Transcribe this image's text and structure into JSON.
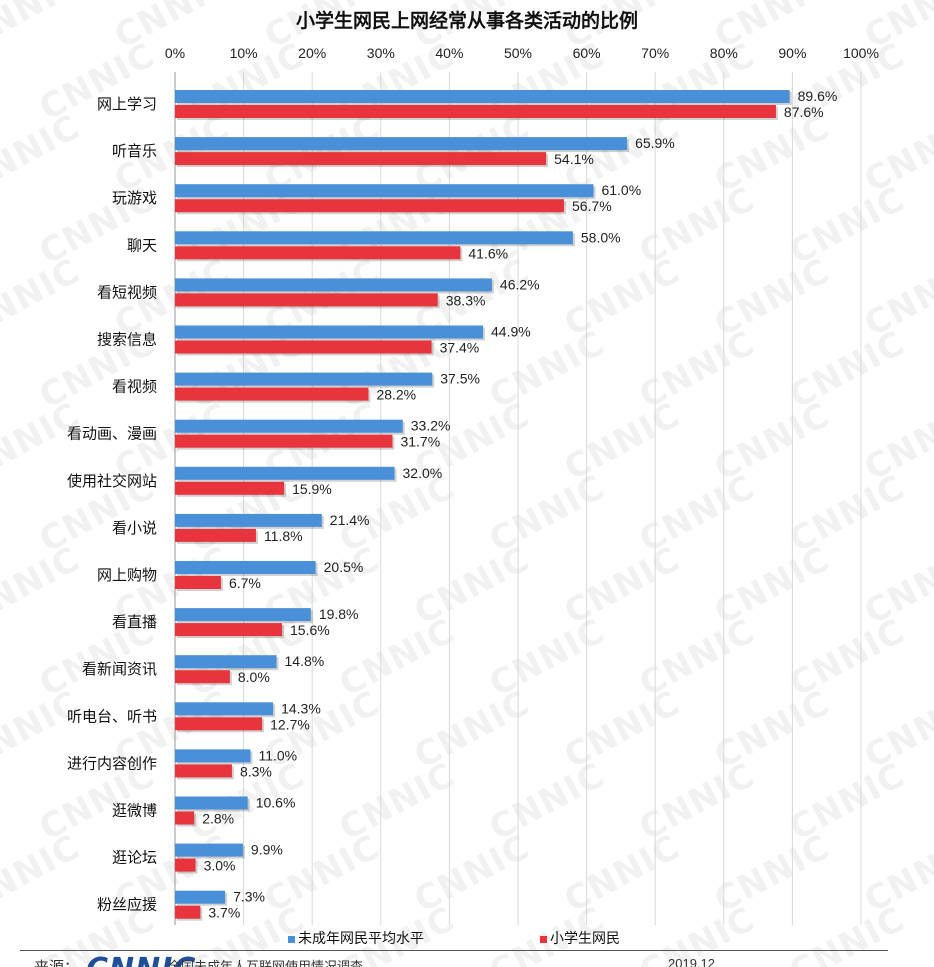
{
  "header": {
    "title": "小学生网民上网经常从事各类活动的比例"
  },
  "colors": {
    "series_a": "#4a90d9",
    "series_b": "#e8343d",
    "grid": "#d8d8d8",
    "watermark_text_color": "#000000"
  },
  "watermark": {
    "text": "CNNIC"
  },
  "footer": {
    "source_label": "来源：",
    "logo_text": "CNNIC",
    "source_text": "全国未成年人互联网使用情况调查",
    "date": "2019.12"
  },
  "legend": {
    "series_a": "未成年网民平均水平",
    "series_b": "小学生网民"
  },
  "chart_data": {
    "type": "bar",
    "orientation": "horizontal",
    "title": "小学生网民上网经常从事各类活动的比例",
    "xlim": [
      0,
      100
    ],
    "x_ticks": [
      "0%",
      "10%",
      "20%",
      "30%",
      "40%",
      "50%",
      "60%",
      "70%",
      "80%",
      "90%",
      "100%"
    ],
    "x_axis_position": "top",
    "grid": true,
    "legend_position": "bottom",
    "categories": [
      "网上学习",
      "听音乐",
      "玩游戏",
      "聊天",
      "看短视频",
      "搜索信息",
      "看视频",
      "看动画、漫画",
      "使用社交网站",
      "看小说",
      "网上购物",
      "看直播",
      "看新闻资讯",
      "听电台、听书",
      "进行内容创作",
      "逛微博",
      "逛论坛",
      "粉丝应援"
    ],
    "series": [
      {
        "name": "未成年网民平均水平",
        "values": [
          89.6,
          65.9,
          61.0,
          58.0,
          46.2,
          44.9,
          37.5,
          33.2,
          32.0,
          21.4,
          20.5,
          19.8,
          14.8,
          14.3,
          11.0,
          10.6,
          9.9,
          7.3
        ],
        "labels": [
          "89.6%",
          "65.9%",
          "61.0%",
          "58.0%",
          "46.2%",
          "44.9%",
          "37.5%",
          "33.2%",
          "32.0%",
          "21.4%",
          "20.5%",
          "19.8%",
          "14.8%",
          "14.3%",
          "11.0%",
          "10.6%",
          "9.9%",
          "7.3%"
        ]
      },
      {
        "name": "小学生网民",
        "values": [
          87.6,
          54.1,
          56.7,
          41.6,
          38.3,
          37.4,
          28.2,
          31.7,
          15.9,
          11.8,
          6.7,
          15.6,
          8.0,
          12.7,
          8.3,
          2.8,
          3.0,
          3.7
        ],
        "labels": [
          "87.6%",
          "54.1%",
          "56.7%",
          "41.6%",
          "38.3%",
          "37.4%",
          "28.2%",
          "31.7%",
          "15.9%",
          "11.8%",
          "6.7%",
          "15.6%",
          "8.0%",
          "12.7%",
          "8.3%",
          "2.8%",
          "3.0%",
          "3.7%"
        ]
      }
    ]
  }
}
